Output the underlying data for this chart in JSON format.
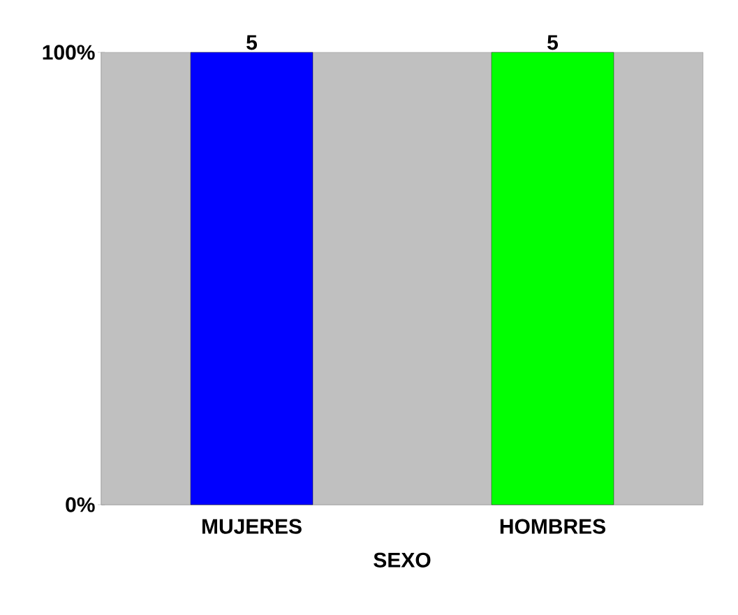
{
  "chart_data": {
    "type": "bar",
    "xlabel": "SEXO",
    "categories": [
      "MUJERES",
      "HOMBRES"
    ],
    "values": [
      100,
      100
    ],
    "colors": [
      "#0000ff",
      "#00ff00"
    ],
    "annotations": [
      {
        "text": "5",
        "x": "MUJERES",
        "y": 100
      },
      {
        "text": "5",
        "x": "HOMBRES",
        "y": 100
      }
    ],
    "ylim": [
      0,
      100
    ],
    "yticks": [
      {
        "value": 0,
        "label": "0%"
      },
      {
        "value": 100,
        "label": "100%"
      }
    ],
    "grid": false
  }
}
